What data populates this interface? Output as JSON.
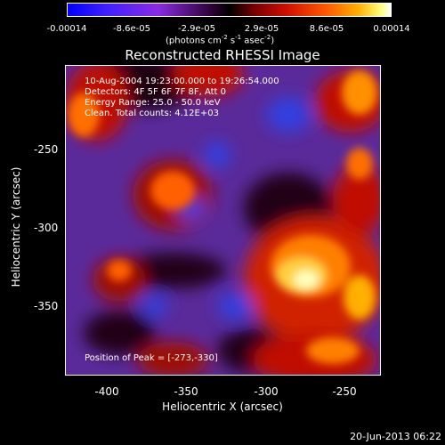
{
  "colorbar": {
    "ticks": [
      "-0.00014",
      "-8.6e-05",
      "-2.9e-05",
      "2.9e-05",
      "8.6e-05",
      "0.00014"
    ],
    "unit_prefix": "(photons cm",
    "unit_sup1": "-2",
    "unit_mid": " s",
    "unit_sup2": "-1",
    "unit_mid2": " asec",
    "unit_sup3": "-2",
    "unit_suffix": ")"
  },
  "title": "Reconstructed RHESSI Image",
  "info_lines": [
    "10-Aug-2004 19:23:00.000 to 19:26:54.000",
    "Detectors: 4F 5F 6F 7F 8F, Att 0",
    "Energy Range: 25.0 - 50.0 keV",
    "Clean. Total counts: 4.12E+03"
  ],
  "peak_text": "Position of Peak = [-273,-330]",
  "x_axis": {
    "label": "Heliocentric X (arcsec)",
    "ticks": [
      "-400",
      "-350",
      "-300",
      "-250"
    ]
  },
  "y_axis": {
    "label": "Heliocentric Y (arcsec)",
    "ticks": [
      "-250",
      "-300",
      "-350"
    ]
  },
  "footer_date": "20-Jun-2013 06:22",
  "colors": {
    "background": "#000000",
    "negative": "#5a2a9a",
    "positive": "#ff3000",
    "peak": "#ffffff"
  }
}
